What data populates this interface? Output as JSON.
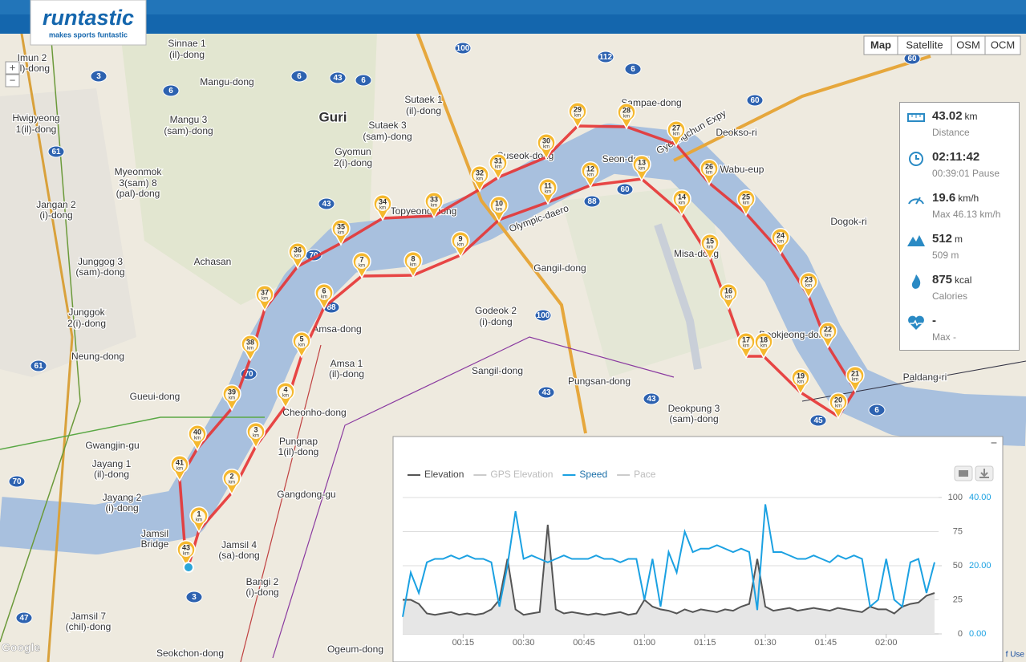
{
  "header": {
    "logo": "runtastic",
    "tagline": "makes sports funtastic"
  },
  "map_controls": {
    "zoom_in": "+",
    "zoom_out": "−",
    "map_types": [
      "Map",
      "Satellite",
      "OSM",
      "OCM"
    ]
  },
  "place_labels": [
    "Imun 2",
    "(il)-dong",
    "Sinnae 1",
    "(il)-dong",
    "Mangu-dong",
    "Guri",
    "Sutaek 1",
    "(il)-dong",
    "Sutaek 3",
    "(sam)-dong",
    "Gyomun",
    "2(i)-dong",
    "Mangu 3",
    "(sam)-dong",
    "Hwigyeong",
    "1(il)-dong",
    "Myeonmok",
    "3(sam) 8",
    "(pal)-dong",
    "Jangan 2",
    "(i)-dong",
    "Junggog 3",
    "(sam)-dong",
    "Junggok",
    "2(i)-dong",
    "Neung-dong",
    "Achasan",
    "Gueui-dong",
    "Gwangjin-gu",
    "Jayang 1",
    "(il)-dong",
    "Jayang 2",
    "(i)-dong",
    "Jamsil",
    "Bridge",
    "Jamsil 4",
    "(sa)-dong",
    "Bangi 2",
    "(i)-dong",
    "Jamsil 7",
    "(chil)-dong",
    "Seokchon-dong",
    "Ogeum-dong",
    "Gangdong-gu",
    "Pungnap",
    "1(il)-dong",
    "Cheonho-dong",
    "Amsa 1",
    "(il)-dong",
    "Amsa-dong",
    "Sangil-dong",
    "Godeok 2",
    "(i)-dong",
    "Gangil-dong",
    "Pungsan-dong",
    "Deokpung 3",
    "(sam)-dong",
    "Misa-dong",
    "Deokjeong-dong",
    "Seon-dong",
    "Sampae-dong",
    "Deokso-ri",
    "Wabu-eup",
    "Dogok-ri",
    "Paldang-ri",
    "Topyeong-dong",
    "Suseok-dong",
    "Olympic-daero",
    "Gyeongchun Expy"
  ],
  "road_shields": [
    "3",
    "6",
    "6",
    "43",
    "6",
    "112",
    "6",
    "100",
    "43",
    "88",
    "60",
    "60",
    "61",
    "70",
    "70",
    "88",
    "100",
    "43",
    "43",
    "45",
    "6",
    "3",
    "47",
    "70",
    "61",
    "60"
  ],
  "km_unit": "km",
  "km_markers": [
    "1",
    "2",
    "3",
    "4",
    "5",
    "6",
    "7",
    "8",
    "9",
    "10",
    "11",
    "12",
    "13",
    "14",
    "15",
    "16",
    "17",
    "18",
    "19",
    "20",
    "21",
    "22",
    "23",
    "24",
    "25",
    "26",
    "27",
    "28",
    "29",
    "30",
    "31",
    "32",
    "33",
    "34",
    "35",
    "36",
    "37",
    "38",
    "39",
    "40",
    "41",
    "43"
  ],
  "stats": [
    {
      "value": "43.02",
      "unit": "km",
      "label": "Distance"
    },
    {
      "value": "02:11:42",
      "label": "00:39:01 Pause"
    },
    {
      "value": "19.6",
      "unit": "km/h",
      "label": "Max 46.13 km/h"
    },
    {
      "value": "512",
      "unit": "m",
      "label": "509 m"
    },
    {
      "value": "875",
      "unit": "kcal",
      "label": "Calories"
    },
    {
      "value": "-",
      "label": "Max -"
    }
  ],
  "chart_panel": {
    "minimize": "−"
  },
  "chart_data": {
    "type": "line",
    "x": [
      0,
      2,
      4,
      6,
      8,
      10,
      12,
      14,
      16,
      18,
      20,
      22,
      24,
      26,
      28,
      30,
      32,
      34,
      36,
      38,
      40,
      42,
      44,
      46,
      48,
      50,
      52,
      54,
      56,
      58,
      60,
      62,
      64,
      66,
      68,
      70,
      72,
      74,
      76,
      78,
      80,
      82,
      84,
      86,
      88,
      90,
      92,
      94,
      96,
      98,
      100,
      102,
      104,
      106,
      108,
      110,
      112,
      114,
      116,
      118,
      120,
      122,
      124,
      126,
      128,
      130,
      132
    ],
    "xlim": [
      0,
      132
    ],
    "xticks": [
      {
        "value": 15,
        "label": "00:15"
      },
      {
        "value": 30,
        "label": "00:30"
      },
      {
        "value": 45,
        "label": "00:45"
      },
      {
        "value": 60,
        "label": "01:00"
      },
      {
        "value": 75,
        "label": "01:15"
      },
      {
        "value": 90,
        "label": "01:30"
      },
      {
        "value": 105,
        "label": "01:45"
      },
      {
        "value": 120,
        "label": "02:00"
      }
    ],
    "ylim": [
      0,
      100
    ],
    "yticks": [
      0,
      25,
      50,
      75,
      100
    ],
    "y2lim": [
      0,
      40
    ],
    "y2ticks": [
      {
        "value": 0,
        "label": "0.00"
      },
      {
        "value": 20,
        "label": "20.00"
      },
      {
        "value": 40,
        "label": "40.00"
      }
    ],
    "grid": true,
    "series": [
      {
        "name": "Elevation",
        "color": "#555555",
        "values": [
          25,
          25,
          22,
          15,
          14,
          15,
          16,
          14,
          15,
          14,
          15,
          18,
          25,
          55,
          18,
          14,
          15,
          16,
          80,
          18,
          15,
          16,
          15,
          14,
          15,
          14,
          15,
          16,
          14,
          15,
          25,
          20,
          18,
          17,
          15,
          18,
          16,
          18,
          17,
          16,
          18,
          17,
          20,
          22,
          55,
          20,
          17,
          18,
          19,
          17,
          18,
          19,
          18,
          17,
          19,
          18,
          17,
          16,
          20,
          18,
          18,
          15,
          20,
          22,
          23,
          28,
          30
        ]
      },
      {
        "name": "GPS Elevation",
        "color": "#cccccc"
      },
      {
        "name": "Speed",
        "color": "#1ba1e2",
        "axis": "y2",
        "values": [
          5,
          18,
          12,
          21,
          22,
          22,
          23,
          22,
          23,
          22,
          22,
          21,
          8,
          20,
          36,
          22,
          23,
          22,
          21,
          22,
          23,
          22,
          22,
          22,
          23,
          22,
          22,
          21,
          22,
          22,
          10,
          22,
          8,
          24,
          18,
          30,
          24,
          25,
          25,
          26,
          25,
          24,
          25,
          24,
          7,
          38,
          24,
          24,
          23,
          22,
          22,
          23,
          22,
          21,
          23,
          22,
          23,
          22,
          8,
          10,
          22,
          10,
          8,
          21,
          22,
          12,
          21
        ]
      },
      {
        "name": "Pace",
        "color": "#cccccc"
      }
    ]
  },
  "footer": {
    "attribution": "Google",
    "terms": "f Use"
  }
}
